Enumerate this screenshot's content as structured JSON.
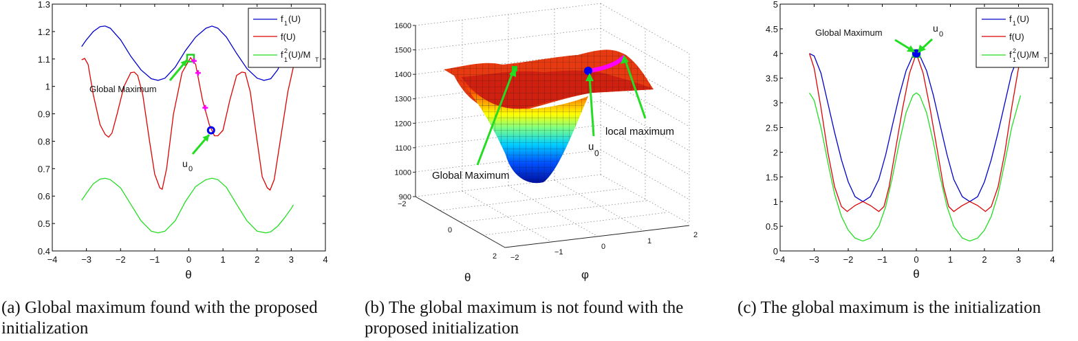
{
  "chart_data": [
    {
      "id": "a",
      "type": "line",
      "title": "",
      "xlabel": "θ",
      "ylabel": "",
      "xlim": [
        -4,
        4
      ],
      "ylim": [
        0.4,
        1.3
      ],
      "xticks": [
        "−4",
        "−3",
        "−2",
        "−1",
        "0",
        "1",
        "2",
        "3",
        "4"
      ],
      "yticks": [
        "0.4",
        "0.5",
        "0.6",
        "0.7",
        "0.8",
        "0.9",
        "1",
        "1.1",
        "1.2",
        "1.3"
      ],
      "grid": false,
      "legend_position": "upper right",
      "series": [
        {
          "name": "f1(U)",
          "color": "#0000cc",
          "x": [
            -3.14,
            -3.0,
            -2.8,
            -2.6,
            -2.45,
            -2.3,
            -2.0,
            -1.7,
            -1.4,
            -1.1,
            -0.9,
            -0.7,
            -0.4,
            -0.1,
            0.2,
            0.5,
            0.68,
            0.85,
            1.1,
            1.4,
            1.7,
            2.0,
            2.2,
            2.4,
            2.6,
            2.8,
            3.0,
            3.06
          ],
          "y": [
            1.145,
            1.17,
            1.2,
            1.218,
            1.22,
            1.212,
            1.17,
            1.11,
            1.06,
            1.028,
            1.022,
            1.03,
            1.07,
            1.13,
            1.18,
            1.212,
            1.22,
            1.212,
            1.18,
            1.12,
            1.065,
            1.03,
            1.022,
            1.028,
            1.06,
            1.11,
            1.16,
            1.17
          ]
        },
        {
          "name": "f(U)",
          "color": "#dd0000",
          "x": [
            -3.14,
            -3.05,
            -2.95,
            -2.8,
            -2.6,
            -2.45,
            -2.35,
            -2.25,
            -2.1,
            -1.9,
            -1.7,
            -1.6,
            -1.5,
            -1.35,
            -1.15,
            -1.0,
            -0.85,
            -0.78,
            -0.65,
            -0.45,
            -0.2,
            0.05,
            0.2,
            0.4,
            0.6,
            0.75,
            0.85,
            1.0,
            1.2,
            1.4,
            1.55,
            1.65,
            1.8,
            2.0,
            2.15,
            2.3,
            2.38,
            2.5,
            2.7,
            2.9,
            3.06
          ],
          "y": [
            1.097,
            1.102,
            1.08,
            0.97,
            0.86,
            0.825,
            0.815,
            0.83,
            0.9,
            1.0,
            1.05,
            1.052,
            1.04,
            0.97,
            0.8,
            0.68,
            0.63,
            0.625,
            0.7,
            0.9,
            1.05,
            1.105,
            1.08,
            0.95,
            0.86,
            0.82,
            0.82,
            0.84,
            0.95,
            1.04,
            1.052,
            1.05,
            0.98,
            0.8,
            0.67,
            0.63,
            0.622,
            0.66,
            0.82,
            0.98,
            1.07
          ]
        },
        {
          "name": "f1²(U)/MT",
          "color": "#22dd22",
          "x": [
            -3.14,
            -3.0,
            -2.8,
            -2.6,
            -2.45,
            -2.3,
            -2.0,
            -1.7,
            -1.4,
            -1.1,
            -0.9,
            -0.7,
            -0.4,
            -0.1,
            0.2,
            0.5,
            0.68,
            0.85,
            1.1,
            1.4,
            1.7,
            2.0,
            2.25,
            2.4,
            2.6,
            2.8,
            3.0,
            3.06
          ],
          "y": [
            0.585,
            0.61,
            0.645,
            0.662,
            0.665,
            0.66,
            0.63,
            0.57,
            0.51,
            0.472,
            0.466,
            0.472,
            0.51,
            0.58,
            0.635,
            0.66,
            0.665,
            0.66,
            0.632,
            0.57,
            0.51,
            0.472,
            0.466,
            0.47,
            0.49,
            0.52,
            0.555,
            0.568
          ]
        }
      ],
      "markers": [
        {
          "label": "Global Maximum",
          "shape": "square",
          "color": "#22cc22",
          "x": 0.05,
          "y": 1.103
        },
        {
          "label": "iterates",
          "shape": "plus",
          "color": "#ff00ff",
          "points": [
            [
              0.15,
              1.093
            ],
            [
              0.27,
              1.049
            ],
            [
              0.48,
              0.922
            ]
          ]
        },
        {
          "label": "u0",
          "shape": "circle",
          "color": "#0000ee",
          "x": 0.65,
          "y": 0.84
        }
      ],
      "annotations": [
        {
          "text": "Global Maximum",
          "x": -2.0,
          "y": 0.99
        },
        {
          "text": "u0",
          "x": -0.15,
          "y": 0.7
        }
      ]
    },
    {
      "id": "b",
      "type": "surface",
      "title": "",
      "xlabel": "φ",
      "ylabel": "θ",
      "zlabel": "",
      "xlim": [
        -2,
        2
      ],
      "ylim": [
        -2,
        2
      ],
      "zlim": [
        900,
        1600
      ],
      "xticks": [
        "−2",
        "−1",
        "0",
        "1",
        "2"
      ],
      "yticks": [
        "−2",
        "0",
        "2"
      ],
      "zticks": [
        "900",
        "1000",
        "1100",
        "1200",
        "1300",
        "1400",
        "1500",
        "1600"
      ],
      "grid": true,
      "surface_min": 950,
      "surface_max_approx": 1480,
      "colormap": "jet",
      "annotations": [
        {
          "text": "Global Maximum"
        },
        {
          "text": "u0"
        },
        {
          "text": "local maximum"
        }
      ]
    },
    {
      "id": "c",
      "type": "line",
      "title": "",
      "xlabel": "θ",
      "ylabel": "",
      "xlim": [
        -4,
        4
      ],
      "ylim": [
        0,
        5
      ],
      "xticks": [
        "−4",
        "−3",
        "−2",
        "−1",
        "0",
        "1",
        "2",
        "3",
        "4"
      ],
      "yticks": [
        "0",
        "0.5",
        "1",
        "1.5",
        "2",
        "2.5",
        "3",
        "3.5",
        "4",
        "4.5",
        "5"
      ],
      "grid": false,
      "legend_position": "upper right",
      "series": [
        {
          "name": "f1(U)",
          "color": "#0000cc",
          "x": [
            -3.14,
            -3.0,
            -2.8,
            -2.6,
            -2.4,
            -2.2,
            -2.0,
            -1.8,
            -1.57,
            -1.35,
            -1.1,
            -0.9,
            -0.7,
            -0.5,
            -0.3,
            -0.1,
            0.0,
            0.1,
            0.3,
            0.5,
            0.7,
            0.9,
            1.1,
            1.35,
            1.57,
            1.8,
            2.0,
            2.2,
            2.4,
            2.6,
            2.8,
            3.0,
            3.06
          ],
          "y": [
            4.0,
            3.95,
            3.6,
            3.0,
            2.4,
            1.85,
            1.4,
            1.1,
            1.0,
            1.1,
            1.45,
            1.95,
            2.55,
            3.15,
            3.65,
            3.96,
            4.0,
            3.96,
            3.65,
            3.15,
            2.55,
            1.95,
            1.45,
            1.1,
            1.0,
            1.1,
            1.4,
            1.85,
            2.4,
            3.0,
            3.6,
            3.95,
            4.0
          ]
        },
        {
          "name": "f(U)",
          "color": "#dd0000",
          "x": [
            -3.14,
            -3.0,
            -2.8,
            -2.6,
            -2.4,
            -2.2,
            -2.03,
            -1.8,
            -1.57,
            -1.35,
            -1.1,
            -0.95,
            -0.8,
            -0.6,
            -0.4,
            -0.2,
            0.0,
            0.2,
            0.4,
            0.6,
            0.8,
            0.95,
            1.1,
            1.35,
            1.57,
            1.8,
            2.03,
            2.2,
            2.4,
            2.6,
            2.8,
            3.0,
            3.06
          ],
          "y": [
            4.0,
            3.7,
            2.9,
            2.0,
            1.3,
            0.9,
            0.8,
            0.92,
            1.0,
            0.92,
            0.8,
            0.9,
            1.3,
            2.1,
            2.9,
            3.6,
            4.0,
            3.6,
            2.9,
            2.1,
            1.3,
            0.9,
            0.8,
            0.92,
            1.0,
            0.92,
            0.8,
            0.9,
            1.3,
            2.0,
            2.9,
            3.7,
            3.9
          ]
        },
        {
          "name": "f1²(U)/MT",
          "color": "#22dd22",
          "x": [
            -3.14,
            -3.0,
            -2.8,
            -2.6,
            -2.4,
            -2.2,
            -2.0,
            -1.8,
            -1.57,
            -1.35,
            -1.1,
            -0.9,
            -0.7,
            -0.5,
            -0.3,
            -0.1,
            0.0,
            0.1,
            0.3,
            0.5,
            0.7,
            0.9,
            1.1,
            1.35,
            1.57,
            1.8,
            2.0,
            2.2,
            2.4,
            2.6,
            2.8,
            3.0,
            3.06
          ],
          "y": [
            3.2,
            3.05,
            2.5,
            1.8,
            1.15,
            0.7,
            0.42,
            0.26,
            0.2,
            0.26,
            0.5,
            0.9,
            1.5,
            2.2,
            2.8,
            3.15,
            3.2,
            3.15,
            2.8,
            2.2,
            1.5,
            0.9,
            0.5,
            0.26,
            0.2,
            0.26,
            0.42,
            0.7,
            1.15,
            1.8,
            2.5,
            3.0,
            3.15
          ]
        }
      ],
      "markers": [
        {
          "label": "Global Maximum",
          "shape": "square",
          "color": "#22cc22",
          "x": 0.0,
          "y": 4.0
        },
        {
          "label": "u0",
          "shape": "circle",
          "color": "#0000ee",
          "x": 0.0,
          "y": 4.0
        }
      ],
      "annotations": [
        {
          "text": "Global Maximum",
          "x": -2.1,
          "y": 4.4
        },
        {
          "text": "u0",
          "x": 0.5,
          "y": 4.4
        }
      ]
    }
  ],
  "panels": {
    "a": {
      "legend": [
        "f1(U)",
        "f(U)",
        "f1²(U)/MT"
      ],
      "annotation_global": "Global Maximum",
      "annotation_u0": "u",
      "annotation_u0_sub": "0",
      "xlabel": "θ",
      "caption_line1": "(a)  Global maximum found with the proposed",
      "caption_line2": "initialization"
    },
    "b": {
      "annotation_global": "Global Maximum",
      "annotation_u0": "u",
      "annotation_u0_sub": "0",
      "annotation_local": "local maximum",
      "xlabel": "φ",
      "ylabel": "θ",
      "caption_line1": "(b)  The global maximum is not found with the",
      "caption_line2": "proposed initialization"
    },
    "c": {
      "annotation_global": "Global Maximum",
      "annotation_u0": "u",
      "annotation_u0_sub": "0",
      "xlabel": "θ",
      "caption_line1": "(c)  The global maximum is the initialization"
    }
  },
  "legend_labels": {
    "f1_main": "f",
    "f1_sub": "1",
    "f1_tail": "(U)",
    "f_label": "f(U)",
    "f1sq_main": "f",
    "f1sq_sup": "2",
    "f1sq_sub": "1",
    "f1sq_tail": "(U)/M",
    "f1sq_tail_sub": "T"
  },
  "colors": {
    "blue": "#0000cc",
    "red": "#dd0000",
    "green": "#22dd22",
    "magenta": "#ff00ff",
    "arrow_green": "#22dd22"
  }
}
